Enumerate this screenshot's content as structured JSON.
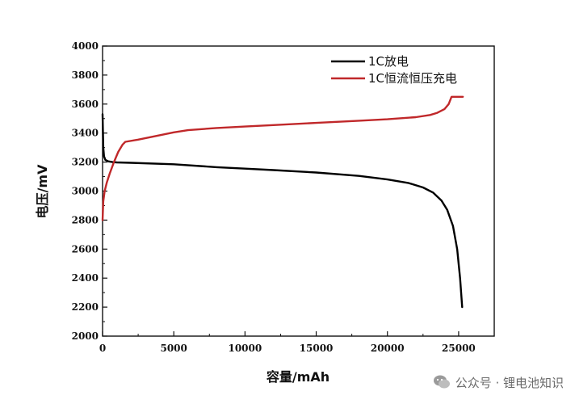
{
  "chart_data": {
    "type": "line",
    "xlabel": "容量/mAh",
    "ylabel": "电压/mV",
    "xlim": [
      0,
      27500
    ],
    "ylim": [
      2000,
      4000
    ],
    "xticks": [
      0,
      5000,
      10000,
      15000,
      20000,
      25000
    ],
    "yticks": [
      2000,
      2200,
      2400,
      2600,
      2800,
      3000,
      3200,
      3400,
      3600,
      3800,
      4000
    ],
    "legend_position": "top-right",
    "grid": false,
    "series": [
      {
        "name": "1C放电",
        "color": "#000000",
        "x": [
          0,
          50,
          100,
          200,
          400,
          700,
          1000,
          2000,
          5000,
          8000,
          10000,
          12000,
          15000,
          18000,
          20000,
          21500,
          22500,
          23200,
          23800,
          24200,
          24600,
          24900,
          25100,
          25250
        ],
        "y": [
          3530,
          3300,
          3240,
          3215,
          3205,
          3200,
          3198,
          3195,
          3185,
          3165,
          3155,
          3145,
          3128,
          3105,
          3080,
          3055,
          3025,
          2990,
          2935,
          2870,
          2760,
          2600,
          2400,
          2200
        ]
      },
      {
        "name": "1C恒流恒压充电",
        "color": "#c0282a",
        "x": [
          0,
          50,
          150,
          300,
          500,
          800,
          1100,
          1400,
          1600,
          2500,
          4000,
          5000,
          6000,
          8000,
          10000,
          12000,
          15000,
          18000,
          20000,
          22000,
          23000,
          23500,
          24000,
          24300,
          24500,
          25300
        ],
        "y": [
          2800,
          2930,
          3000,
          3060,
          3120,
          3200,
          3270,
          3320,
          3340,
          3355,
          3385,
          3405,
          3420,
          3435,
          3445,
          3455,
          3470,
          3485,
          3495,
          3510,
          3525,
          3540,
          3565,
          3600,
          3650,
          3650
        ]
      }
    ]
  },
  "watermark": {
    "text": "公众号 · 锂电池知识",
    "icon": "wechat-icon"
  }
}
